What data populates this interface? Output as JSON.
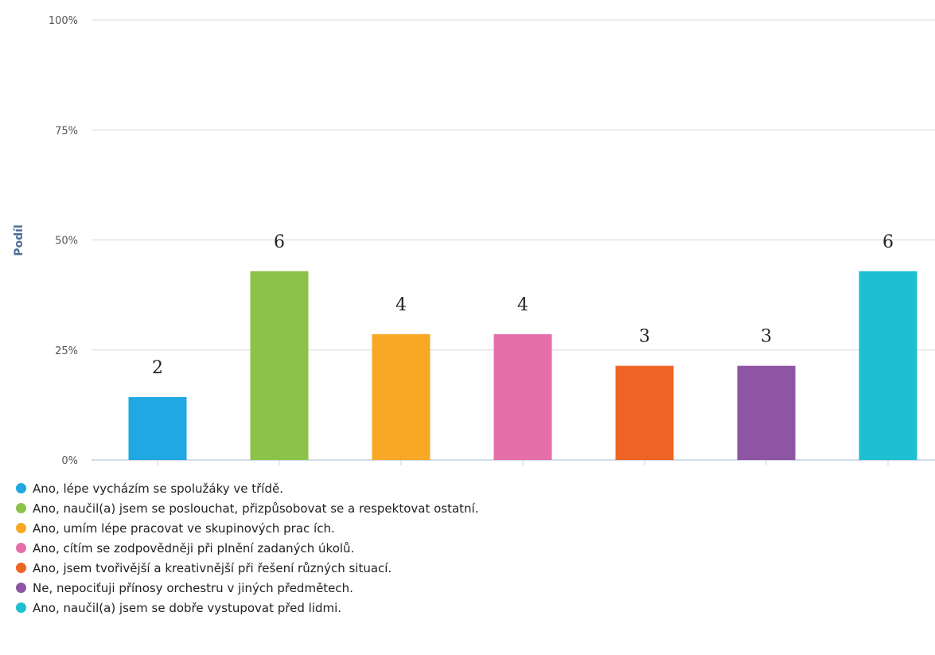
{
  "chart_data": {
    "type": "bar",
    "title": "",
    "ylabel": "Podíl",
    "xlabel": "",
    "ylim": [
      0,
      100
    ],
    "yticks": [
      "0%",
      "25%",
      "50%",
      "75%",
      "100%"
    ],
    "grid": true,
    "legend_position": "bottom-left",
    "categories": [
      "Ano, lépe vycházím se spolužáky ve třídě.",
      "Ano, naučil(a) jsem se poslouchat, přizpůsobovat se a respektovat ostatní.",
      "Ano, umím lépe pracovat ve skupinových prac ích.",
      "Ano, cítím se zodpovědněji při plnění zadaných úkolů.",
      "Ano, jsem tvořivější a kreativnější při řešení různých situací.",
      "Ne, nepociťuji přínosy orchestru v jiných předmětech.",
      "Ano, naučil(a) jsem se dobře vystupovat před lidmi."
    ],
    "values": [
      14.3,
      42.9,
      28.6,
      28.6,
      21.4,
      21.4,
      42.9
    ],
    "data_labels": [
      "2",
      "6",
      "4",
      "4",
      "3",
      "3",
      "6"
    ],
    "colors": [
      "#1fa8e1",
      "#8bc34a",
      "#f9a825",
      "#e66fa9",
      "#ef6325",
      "#8e55a4",
      "#1ebfd0"
    ]
  }
}
